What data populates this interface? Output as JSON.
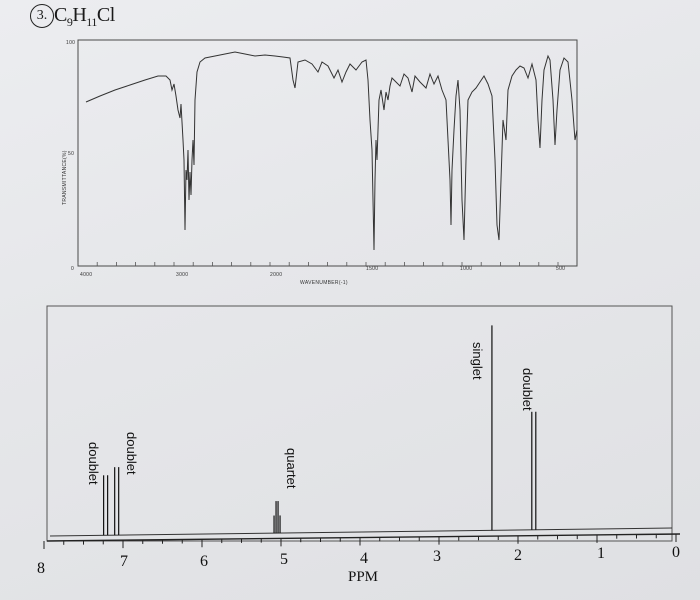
{
  "header": {
    "question_number": "3.",
    "formula_parts": [
      {
        "text": "C",
        "sub": false
      },
      {
        "text": "9",
        "sub": true
      },
      {
        "text": "H",
        "sub": false
      },
      {
        "text": "11",
        "sub": true
      },
      {
        "text": "Cl",
        "sub": false
      }
    ]
  },
  "ir_spectrum": {
    "y_axis_label": "TRANSMITTANCE(%)",
    "y_ticks": [
      "100",
      "50",
      "0"
    ],
    "x_ticks": [
      "4000",
      "3000",
      "2000",
      "1500",
      "1000",
      "500"
    ],
    "x_axis_label": "WAVENUMBER(-1)",
    "line_color": "#333333"
  },
  "nmr_spectrum": {
    "x_axis_label": "PPM",
    "x_ticks": [
      "8",
      "7",
      "6",
      "5",
      "4",
      "3",
      "2",
      "1",
      "0"
    ],
    "peak_labels": {
      "doublet_1": "doublet",
      "doublet_2": "doublet",
      "quartet": "quartet",
      "singlet": "singlet",
      "doublet_3": "doublet"
    },
    "peaks_ppm": [
      {
        "label_key": "doublet_1",
        "ppm": 7.22,
        "type": "doublet"
      },
      {
        "label_key": "doublet_2",
        "ppm": 7.08,
        "type": "doublet"
      },
      {
        "label_key": "quartet",
        "ppm": 5.05,
        "type": "quartet"
      },
      {
        "label_key": "singlet",
        "ppm": 2.33,
        "type": "singlet"
      },
      {
        "label_key": "doublet_3",
        "ppm": 1.8,
        "type": "doublet"
      }
    ]
  }
}
